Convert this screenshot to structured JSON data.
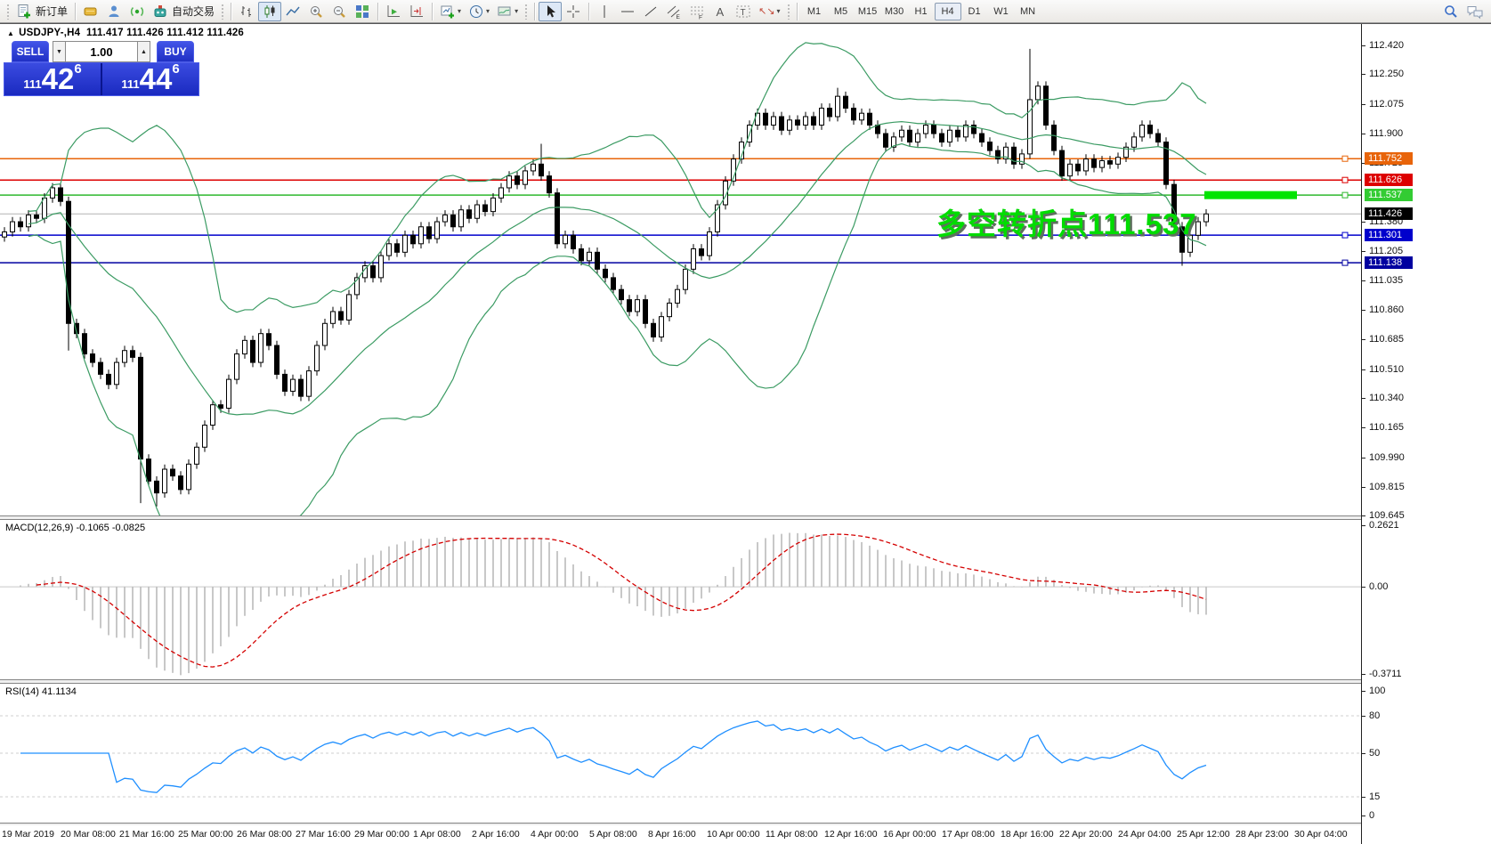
{
  "toolbar": {
    "new_order": "新订单",
    "autotrading": "自动交易",
    "timeframes": [
      "M1",
      "M5",
      "M15",
      "M30",
      "H1",
      "H4",
      "D1",
      "W1",
      "MN"
    ],
    "active_timeframe": "H4"
  },
  "icons": {
    "dropdown_caret": "▾",
    "spin_down": "▼",
    "spin_up": "▲",
    "collapse": "▲",
    "arrows_glyph": "↖↘"
  },
  "chart": {
    "title_symbol": "USDJPY-,H4",
    "title_ohlc": "111.417 111.426 111.412 111.426",
    "annotation": "多空转折点111.537"
  },
  "trade_panel": {
    "sell_label": "SELL",
    "buy_label": "BUY",
    "volume": "1.00",
    "sell_price": {
      "prefix": "111",
      "big": "42",
      "sup": "6"
    },
    "buy_price": {
      "prefix": "111",
      "big": "44",
      "sup": "6"
    }
  },
  "chart_data": [
    {
      "type": "candlestick",
      "symbol": "USDJPY-",
      "timeframe": "H4",
      "ohlc_label": "111.417 111.426 111.412 111.426",
      "ylim": [
        109.647,
        112.541
      ],
      "price_ticks": [
        "112.420",
        "112.250",
        "112.075",
        "111.900",
        "111.725",
        "111.380",
        "111.205",
        "111.035",
        "110.860",
        "110.685",
        "110.510",
        "110.340",
        "110.165",
        "109.990",
        "109.815",
        "109.645"
      ],
      "x_labels": [
        "19 Mar 2019",
        "20 Mar 08:00",
        "21 Mar 16:00",
        "25 Mar 00:00",
        "26 Mar 08:00",
        "27 Mar 16:00",
        "29 Mar 00:00",
        "1 Apr 08:00",
        "2 Apr 16:00",
        "4 Apr 00:00",
        "5 Apr 08:00",
        "8 Apr 16:00",
        "10 Apr 00:00",
        "11 Apr 08:00",
        "12 Apr 16:00",
        "16 Apr 00:00",
        "17 Apr 08:00",
        "18 Apr 16:00",
        "22 Apr 20:00",
        "24 Apr 04:00",
        "25 Apr 12:00",
        "28 Apr 23:00",
        "30 Apr 04:00"
      ],
      "closes": [
        111.32,
        111.38,
        111.35,
        111.42,
        111.4,
        111.52,
        111.58,
        111.5,
        110.78,
        110.72,
        110.6,
        110.55,
        110.48,
        110.42,
        110.55,
        110.62,
        110.58,
        109.98,
        109.85,
        109.78,
        109.92,
        109.88,
        109.8,
        109.95,
        110.05,
        110.18,
        110.3,
        110.28,
        110.45,
        110.6,
        110.68,
        110.55,
        110.72,
        110.65,
        110.48,
        110.38,
        110.45,
        110.35,
        110.5,
        110.65,
        110.78,
        110.85,
        110.8,
        110.95,
        111.05,
        111.12,
        111.05,
        111.18,
        111.25,
        111.2,
        111.3,
        111.25,
        111.35,
        111.28,
        111.38,
        111.42,
        111.35,
        111.45,
        111.4,
        111.48,
        111.44,
        111.52,
        111.58,
        111.65,
        111.6,
        111.68,
        111.72,
        111.65,
        111.55,
        111.25,
        111.3,
        111.22,
        111.15,
        111.2,
        111.1,
        111.05,
        110.98,
        110.92,
        110.85,
        110.92,
        110.78,
        110.7,
        110.82,
        110.9,
        110.98,
        111.1,
        111.22,
        111.18,
        111.32,
        111.48,
        111.62,
        111.75,
        111.85,
        111.95,
        112.02,
        111.95,
        112.0,
        111.92,
        111.98,
        111.95,
        112.0,
        111.95,
        112.05,
        112.0,
        112.12,
        112.05,
        111.98,
        112.02,
        111.95,
        111.9,
        111.82,
        111.88,
        111.92,
        111.85,
        111.9,
        111.95,
        111.9,
        111.85,
        111.92,
        111.88,
        111.95,
        111.9,
        111.85,
        111.8,
        111.75,
        111.82,
        111.72,
        111.78,
        112.1,
        112.18,
        111.95,
        111.8,
        111.65,
        111.72,
        111.68,
        111.75,
        111.7,
        111.74,
        111.72,
        111.76,
        111.82,
        111.88,
        111.95,
        111.9,
        111.85,
        111.6,
        111.35,
        111.2,
        111.3,
        111.38,
        111.426
      ],
      "wick_overrides": {
        "8": {
          "l": 110.62
        },
        "17": {
          "l": 109.72
        },
        "19": {
          "l": 109.7
        },
        "67": {
          "h": 111.84
        },
        "104": {
          "h": 112.17
        },
        "128": {
          "h": 112.4
        },
        "147": {
          "l": 111.12
        }
      },
      "levels": [
        {
          "label": "111.752",
          "value": 111.752,
          "color": "#E8640A"
        },
        {
          "label": "111.626",
          "value": 111.626,
          "color": "#DD0000"
        },
        {
          "label": "111.537",
          "value": 111.537,
          "color": "#2EB82E",
          "badge": "#33CC33"
        },
        {
          "label": "111.426",
          "value": 111.426,
          "color": "#B4B4B4",
          "badge": "#000000",
          "current": true
        },
        {
          "label": "111.301",
          "value": 111.301,
          "color": "#0000CC"
        },
        {
          "label": "111.138",
          "value": 111.138,
          "color": "#0000A0"
        }
      ],
      "bollinger": {
        "period": 20,
        "deviation": 2,
        "color": "#3B9B63"
      },
      "highlight_bar": {
        "price": 111.537,
        "color": "#00E400"
      },
      "annotation": "多空转折点111.537"
    },
    {
      "type": "macd-histogram",
      "label": "MACD(12,26,9)",
      "values_label": "-0.1065 -0.0825",
      "macd_value": -0.1065,
      "signal_value": -0.0825,
      "ylim": [
        -0.3711,
        0.2621
      ],
      "ticks": [
        {
          "label": "0.2621",
          "value": 0.2621
        },
        {
          "label": "0.00",
          "value": 0
        },
        {
          "label": "-0.3711",
          "value": -0.3711
        }
      ],
      "histogram_color": "#BABABA",
      "signal_color": "#D40000"
    },
    {
      "type": "rsi-line",
      "label": "RSI(14)",
      "value_label": "41.1134",
      "rsi_value": 41.1134,
      "ylim": [
        0,
        100
      ],
      "levels_dashed": [
        80,
        50,
        15
      ],
      "ticks": [
        {
          "label": "100",
          "value": 100
        },
        {
          "label": "80",
          "value": 80
        },
        {
          "label": "50",
          "value": 50
        },
        {
          "label": "15",
          "value": 15
        },
        {
          "label": "0",
          "value": 0
        }
      ],
      "line_color": "#1F8FFF"
    }
  ]
}
